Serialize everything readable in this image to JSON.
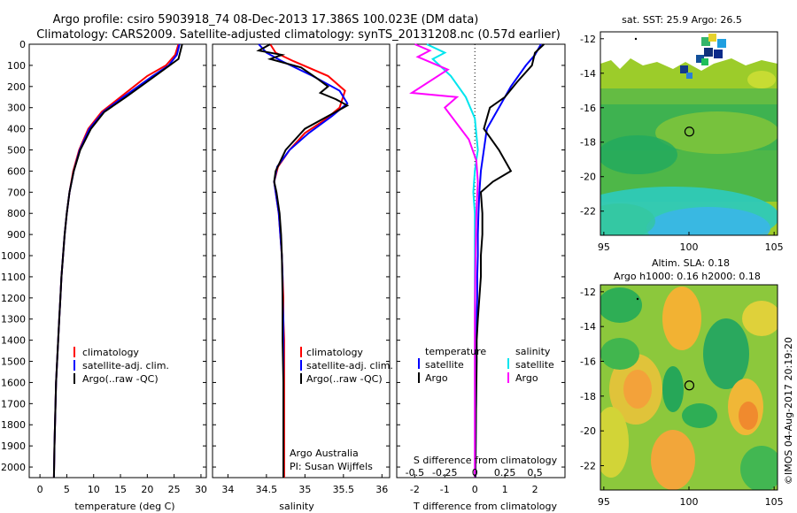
{
  "header": {
    "title_line1": "Argo profile: csiro 5903918_74 08-Dec-2013 17.386S 100.023E (DM data)",
    "title_line2": "Climatology: CARS2009. Satellite-adjusted climatology: synTS_20131208.nc (0.57d earlier)"
  },
  "depth_ticks": [
    "0",
    "100",
    "200",
    "300",
    "400",
    "500",
    "600",
    "700",
    "800",
    "900",
    "1000",
    "1100",
    "1200",
    "1300",
    "1400",
    "1500",
    "1600",
    "1700",
    "1800",
    "1900",
    "2000"
  ],
  "legend": {
    "climatology": "climatology",
    "satellite_adj": "satellite-adj. clim.",
    "argo": "Argo(..raw -QC)"
  },
  "diff_legend": {
    "temperature_head": "temperature",
    "salinity_head": "salinity",
    "satellite": "satellite",
    "argo": "Argo"
  },
  "attribution": {
    "line1": "Argo Australia",
    "line2": "PI: Susan Wijffels"
  },
  "map_sst": {
    "title": "sat. SST: 25.9  Argo: 26.5"
  },
  "map_sla": {
    "title1": "Altim. SLA: 0.18",
    "title2": "Argo h1000: 0.16 h2000: 0.18"
  },
  "footer_stamp": "©IMOS 04-Aug-2017 20:19:20",
  "colors": {
    "climatology": "#ff0000",
    "satellite": "#0000ff",
    "argo": "#000000",
    "sal_sat": "#00e5ee",
    "sal_argo": "#ff00ff"
  },
  "chart_data": [
    {
      "type": "line",
      "title": "",
      "xlabel": "temperature (deg C)",
      "ylabel": "",
      "xlim": [
        -2,
        31
      ],
      "ylim": [
        2050,
        0
      ],
      "x_ticks": [
        "0",
        "5",
        "10",
        "15",
        "20",
        "25",
        "30"
      ],
      "series": [
        {
          "name": "climatology",
          "x": [
            25.8,
            25.2,
            23.5,
            20.0,
            15.0,
            11.5,
            9.0,
            7.3,
            6.2,
            5.5,
            5.0,
            4.6,
            4.3,
            4.0,
            3.8,
            3.6,
            3.4,
            3.2,
            3.0,
            2.9,
            2.8,
            2.7,
            2.6
          ],
          "depth": [
            0,
            50,
            100,
            150,
            250,
            320,
            400,
            500,
            600,
            700,
            800,
            900,
            1000,
            1100,
            1200,
            1300,
            1400,
            1500,
            1600,
            1700,
            1800,
            1900,
            2050
          ]
        },
        {
          "name": "satellite-adj. clim.",
          "x": [
            26.0,
            25.5,
            24.0,
            21.0,
            15.5,
            11.8,
            9.2,
            7.4,
            6.3,
            5.5,
            5.0,
            4.6,
            4.3,
            4.0,
            3.8,
            3.6,
            3.4,
            3.2,
            3.0,
            2.9,
            2.8,
            2.7,
            2.6
          ],
          "depth": [
            0,
            50,
            100,
            150,
            250,
            320,
            400,
            500,
            600,
            700,
            800,
            900,
            1000,
            1100,
            1200,
            1300,
            1400,
            1500,
            1600,
            1700,
            1800,
            1900,
            2050
          ]
        },
        {
          "name": "Argo(..raw -QC)",
          "x": [
            26.5,
            26.2,
            25.8,
            22.0,
            16.0,
            12.0,
            9.5,
            7.5,
            6.3,
            5.5,
            5.0,
            4.6,
            4.3,
            4.0,
            3.8,
            3.6,
            3.4,
            3.2,
            3.0,
            2.9,
            2.8,
            2.7,
            2.6
          ],
          "depth": [
            0,
            30,
            70,
            140,
            250,
            320,
            400,
            500,
            600,
            700,
            800,
            900,
            1000,
            1100,
            1200,
            1300,
            1400,
            1500,
            1600,
            1700,
            1800,
            1900,
            2050
          ]
        }
      ]
    },
    {
      "type": "line",
      "title": "",
      "xlabel": "salinity",
      "ylabel": "",
      "xlim": [
        33.8,
        36.1
      ],
      "ylim": [
        2050,
        0
      ],
      "x_ticks": [
        "34",
        "34.5",
        "35",
        "35.5",
        "36"
      ],
      "series": [
        {
          "name": "climatology",
          "x": [
            34.55,
            34.62,
            34.85,
            35.3,
            35.52,
            35.45,
            35.25,
            35.0,
            34.8,
            34.65,
            34.6,
            34.62,
            34.66,
            34.68,
            34.7,
            34.71,
            34.72,
            34.72,
            34.73,
            34.73,
            34.73,
            34.73,
            34.73,
            34.73,
            34.73,
            34.73,
            34.73,
            34.73
          ],
          "depth": [
            0,
            40,
            80,
            150,
            220,
            300,
            360,
            420,
            500,
            580,
            650,
            700,
            800,
            900,
            1000,
            1100,
            1200,
            1300,
            1400,
            1500,
            1600,
            1700,
            1800,
            1900,
            1950,
            2000,
            2030,
            2050
          ]
        },
        {
          "name": "satellite-adj. clim.",
          "x": [
            34.4,
            34.5,
            34.7,
            35.1,
            35.45,
            35.55,
            35.35,
            35.05,
            34.8,
            34.64,
            34.6,
            34.62,
            34.66,
            34.68,
            34.7,
            34.71,
            34.71,
            34.72,
            34.72,
            34.72,
            34.72,
            34.72,
            34.72,
            34.72,
            34.72,
            34.72
          ],
          "depth": [
            0,
            40,
            80,
            150,
            220,
            280,
            340,
            420,
            500,
            580,
            650,
            700,
            800,
            900,
            1000,
            1100,
            1200,
            1300,
            1400,
            1500,
            1600,
            1700,
            1800,
            1900,
            2000,
            2050
          ]
        },
        {
          "name": "Argo(..raw -QC)",
          "x": [
            34.55,
            34.4,
            34.7,
            34.55,
            34.95,
            35.15,
            35.3,
            35.2,
            35.4,
            35.55,
            35.35,
            35.0,
            34.75,
            34.62,
            34.6,
            34.63,
            34.67,
            34.69,
            34.7,
            34.71,
            34.71,
            34.72,
            34.72,
            34.72,
            34.72
          ],
          "depth": [
            0,
            30,
            50,
            70,
            110,
            160,
            200,
            230,
            260,
            290,
            330,
            400,
            500,
            600,
            650,
            700,
            800,
            900,
            1000,
            1200,
            1400,
            1600,
            1800,
            2000,
            2050
          ]
        }
      ]
    },
    {
      "type": "line",
      "title": "",
      "xlabel": "T difference from climatology",
      "xlabel2": "S difference from climatology",
      "ylabel": "",
      "xlim": [
        -2.6,
        3.0
      ],
      "ylim": [
        2050,
        0
      ],
      "x_ticks": [
        "-2",
        "-1",
        "0",
        "1",
        "2"
      ],
      "x_ticks_top": [
        "-0.5",
        "-0.25",
        "0",
        "0.25",
        "0.5"
      ],
      "series": [
        {
          "name": "temperature satellite",
          "x": [
            2.2,
            2.0,
            1.7,
            1.2,
            0.8,
            0.4,
            0.3,
            0.2,
            0.15,
            0.12,
            0.1,
            0.1,
            0.08,
            0.08,
            0.06,
            0.05,
            0.05,
            0.04,
            0.04,
            0.03,
            0.02
          ],
          "depth": [
            0,
            50,
            100,
            200,
            300,
            400,
            500,
            600,
            700,
            800,
            900,
            1000,
            1100,
            1200,
            1300,
            1400,
            1500,
            1600,
            1700,
            1800,
            2050
          ]
        },
        {
          "name": "temperature Argo",
          "x": [
            2.3,
            2.0,
            1.9,
            1.4,
            1.0,
            0.5,
            0.3,
            0.8,
            1.2,
            0.6,
            0.2,
            0.25,
            0.25,
            0.2,
            0.2,
            0.15,
            0.1,
            0.06,
            0.06,
            0.04,
            0.02
          ],
          "depth": [
            0,
            40,
            100,
            180,
            250,
            300,
            400,
            500,
            600,
            650,
            700,
            800,
            900,
            1000,
            1100,
            1200,
            1300,
            1400,
            1500,
            1700,
            2050
          ]
        },
        {
          "name": "salinity satellite",
          "x": [
            -1.6,
            -1.0,
            -1.4,
            -0.8,
            -0.3,
            0.0,
            0.1,
            0.0,
            -0.05,
            0.0,
            0.0,
            0.0,
            0.0,
            0.0,
            0.0
          ],
          "depth": [
            0,
            40,
            70,
            150,
            250,
            350,
            500,
            600,
            700,
            800,
            1000,
            1200,
            1500,
            1800,
            2050
          ]
        },
        {
          "name": "salinity Argo",
          "x": [
            -2.0,
            -1.5,
            -1.9,
            -0.9,
            -2.1,
            -0.6,
            -1.0,
            -0.2,
            0.05,
            0.1,
            0.05,
            0.02,
            0.0,
            0.0,
            0.0
          ],
          "depth": [
            0,
            30,
            60,
            120,
            230,
            250,
            300,
            450,
            550,
            650,
            800,
            1000,
            1300,
            1700,
            2050
          ]
        }
      ]
    },
    {
      "type": "heatmap",
      "title": "sat. SST: 25.9  Argo: 26.5",
      "xlim": [
        94.8,
        105.2
      ],
      "ylim": [
        -23.4,
        -11.6
      ],
      "x_ticks": [
        "95",
        "100",
        "105"
      ],
      "y_ticks": [
        "-12",
        "-14",
        "-16",
        "-18",
        "-20",
        "-22"
      ],
      "marker": {
        "lon": 100.023,
        "lat": -17.386
      }
    },
    {
      "type": "heatmap",
      "title": "Altim. SLA: 0.18",
      "xlim": [
        94.8,
        105.2
      ],
      "ylim": [
        -23.4,
        -11.6
      ],
      "x_ticks": [
        "95",
        "100",
        "105"
      ],
      "y_ticks": [
        "-12",
        "-14",
        "-16",
        "-18",
        "-20",
        "-22"
      ],
      "marker": {
        "lon": 100.023,
        "lat": -17.386
      }
    }
  ]
}
